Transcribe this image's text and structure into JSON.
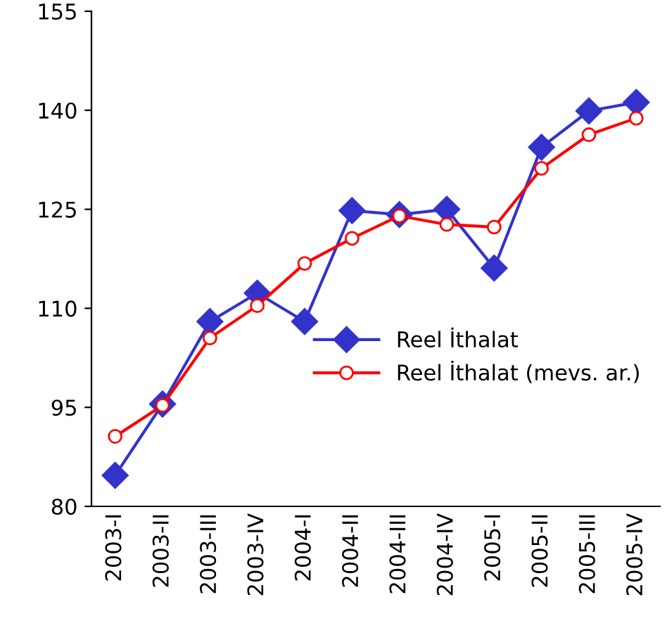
{
  "chart_data": {
    "type": "line",
    "categories": [
      "2003-I",
      "2003-II",
      "2003-III",
      "2003-IV",
      "2004-I",
      "2004-II",
      "2004-III",
      "2004-IV",
      "2005-I",
      "2005-II",
      "2005-III",
      "2005-IV"
    ],
    "series": [
      {
        "name": "Reel İthalat",
        "color": "#3333cc",
        "marker": "diamond",
        "values": [
          84.7,
          95.5,
          108.0,
          112.3,
          108.0,
          124.8,
          124.2,
          125.0,
          116.1,
          134.4,
          139.9,
          141.2
        ]
      },
      {
        "name": "Reel İthalat (mevs. ar.)",
        "color": "#ff0000",
        "marker": "circle",
        "values": [
          90.6,
          95.3,
          105.5,
          110.4,
          116.8,
          120.6,
          124.0,
          122.7,
          122.3,
          131.2,
          136.3,
          138.8
        ]
      }
    ],
    "ylim": [
      80,
      155
    ],
    "yticks": [
      80,
      95,
      110,
      125,
      140,
      155
    ],
    "grid": false,
    "legend": "right"
  }
}
